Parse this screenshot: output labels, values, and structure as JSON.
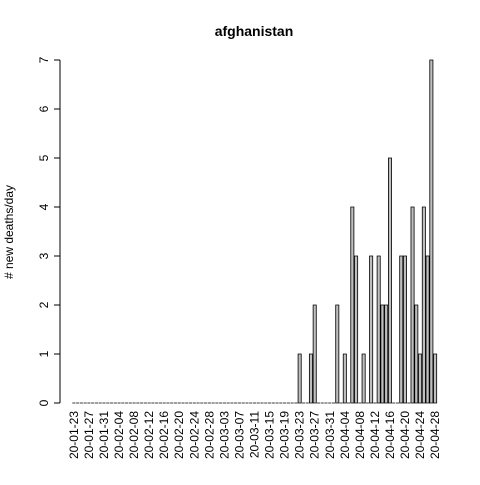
{
  "chart_data": {
    "type": "bar",
    "title": "afghanistan",
    "ylabel": "# new deaths/day",
    "categories": [
      "20-01-23",
      null,
      null,
      null,
      "20-01-27",
      null,
      null,
      null,
      "20-01-31",
      null,
      null,
      null,
      "20-02-04",
      null,
      null,
      null,
      "20-02-08",
      null,
      null,
      null,
      "20-02-12",
      null,
      null,
      null,
      "20-02-16",
      null,
      null,
      null,
      "20-02-20",
      null,
      null,
      null,
      "20-02-24",
      null,
      null,
      null,
      "20-02-28",
      null,
      null,
      null,
      "20-03-03",
      null,
      null,
      null,
      "20-03-07",
      null,
      null,
      null,
      "20-03-11",
      null,
      null,
      null,
      "20-03-15",
      null,
      null,
      null,
      "20-03-19",
      null,
      null,
      null,
      "20-03-23",
      null,
      null,
      null,
      "20-03-27",
      null,
      null,
      null,
      "20-03-31",
      null,
      null,
      null,
      "20-04-04",
      null,
      null,
      null,
      "20-04-08",
      null,
      null,
      null,
      "20-04-12",
      null,
      null,
      null,
      "20-04-16",
      null,
      null,
      null,
      "20-04-20",
      null,
      null,
      null,
      "20-04-24",
      null,
      null,
      null,
      "20-04-28"
    ],
    "values": [
      0,
      0,
      0,
      0,
      0,
      0,
      0,
      0,
      0,
      0,
      0,
      0,
      0,
      0,
      0,
      0,
      0,
      0,
      0,
      0,
      0,
      0,
      0,
      0,
      0,
      0,
      0,
      0,
      0,
      0,
      0,
      0,
      0,
      0,
      0,
      0,
      0,
      0,
      0,
      0,
      0,
      0,
      0,
      0,
      0,
      0,
      0,
      0,
      0,
      0,
      0,
      0,
      0,
      0,
      0,
      0,
      0,
      0,
      0,
      0,
      1,
      0,
      0,
      1,
      2,
      0,
      0,
      0,
      0,
      0,
      2,
      0,
      1,
      0,
      4,
      3,
      0,
      1,
      0,
      3,
      0,
      3,
      2,
      2,
      5,
      0,
      0,
      3,
      3,
      0,
      4,
      2,
      1,
      4,
      3,
      7,
      1
    ],
    "color": "#bebebe",
    "ylim": [
      0,
      7
    ],
    "yticks": [
      0,
      1,
      2,
      3,
      4,
      5,
      6,
      7
    ]
  }
}
